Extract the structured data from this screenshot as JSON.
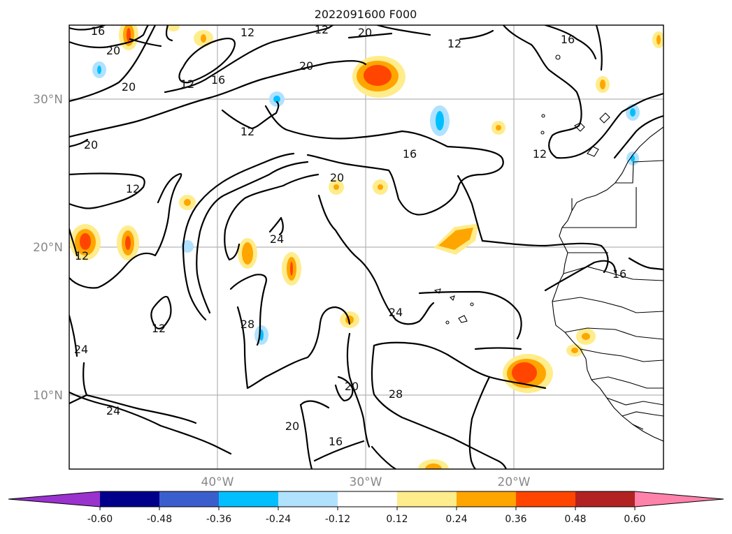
{
  "title": "2022091600 F000",
  "map": {
    "lat_labels": [
      "30°N",
      "20°N",
      "10°N"
    ],
    "lon_labels": [
      "40°W",
      "30°W",
      "20°W"
    ],
    "contour_labels": [
      "16",
      "20",
      "12",
      "12",
      "20",
      "12",
      "16",
      "12",
      "16",
      "20",
      "12",
      "20",
      "20",
      "12",
      "16",
      "12",
      "20",
      "24",
      "12",
      "12",
      "28",
      "24",
      "16",
      "24",
      "20",
      "24",
      "20",
      "28",
      "16"
    ]
  },
  "colorbar": {
    "ticks": [
      "-0.60",
      "-0.48",
      "-0.36",
      "-0.24",
      "-0.12",
      "0.12",
      "0.24",
      "0.36",
      "0.48",
      "0.60"
    ],
    "colors": [
      "#9a32cd",
      "#00008b",
      "#3a5fcd",
      "#00bfff",
      "#b0e2ff",
      "#ffffff",
      "#ffec8b",
      "#ffa500",
      "#ff4500",
      "#b22222",
      "#ff82ab"
    ]
  }
}
